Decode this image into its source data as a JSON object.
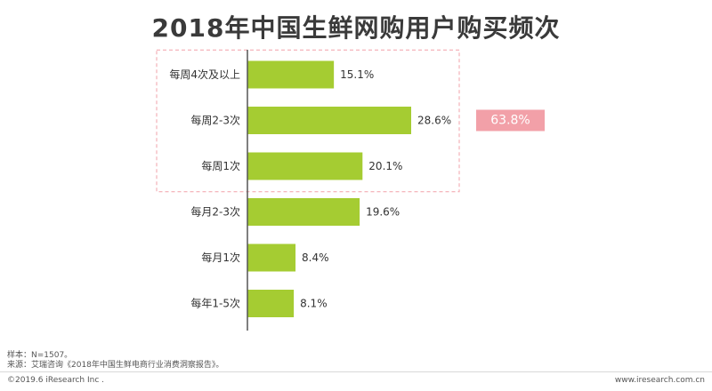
{
  "chart_data": {
    "type": "bar",
    "orientation": "horizontal",
    "title": "2018年中国生鲜网购用户购买频次",
    "categories": [
      "每周4次及以上",
      "每周2-3次",
      "每周1次",
      "每月2-3次",
      "每月1次",
      "每年1-5次"
    ],
    "values": [
      15.1,
      28.6,
      20.1,
      19.6,
      8.4,
      8.1
    ],
    "value_labels": [
      "15.1%",
      "28.6%",
      "20.1%",
      "19.6%",
      "8.4%",
      "8.1%"
    ],
    "xlim": [
      0,
      30
    ],
    "grid": false,
    "legend": "none",
    "bar_color": "#a5cc32",
    "group_annotation": {
      "categories": [
        "每周4次及以上",
        "每周2-3次",
        "每周1次"
      ],
      "label": "63.8%",
      "box_color": "#f2a0a8",
      "style": "dashed-box"
    }
  },
  "footer": {
    "sample": "样本：N=1507。",
    "source": "来源：艾瑞咨询《2018年中国生鲜电商行业消费洞察报告》。",
    "copyright": "©2019.6 iResearch Inc .",
    "website": "www.iresearch.com.cn"
  }
}
